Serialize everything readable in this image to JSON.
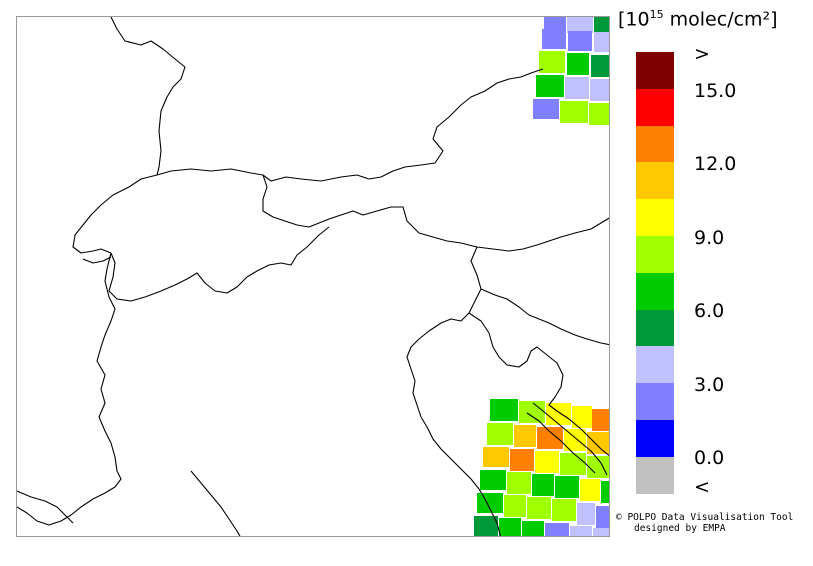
{
  "legend": {
    "title_open": "[",
    "title_base": "10",
    "title_exp": "15",
    "title_unit": " molec/cm²",
    "title_close": "]",
    "colors": [
      "#7f0000",
      "#ff0000",
      "#ff8000",
      "#ffc800",
      "#ffff00",
      "#a0ff00",
      "#00cc00",
      "#00993a",
      "#c0c0ff",
      "#8080ff",
      "#0000ff",
      "#c0c0c0"
    ],
    "labels": [
      ">",
      "15.0",
      "12.0",
      "9.0",
      "6.0",
      "3.0",
      "0.0",
      "<"
    ]
  },
  "credit": {
    "line1": "© POLPO Data Visualisation Tool",
    "line2": "designed by EMPA"
  }
}
